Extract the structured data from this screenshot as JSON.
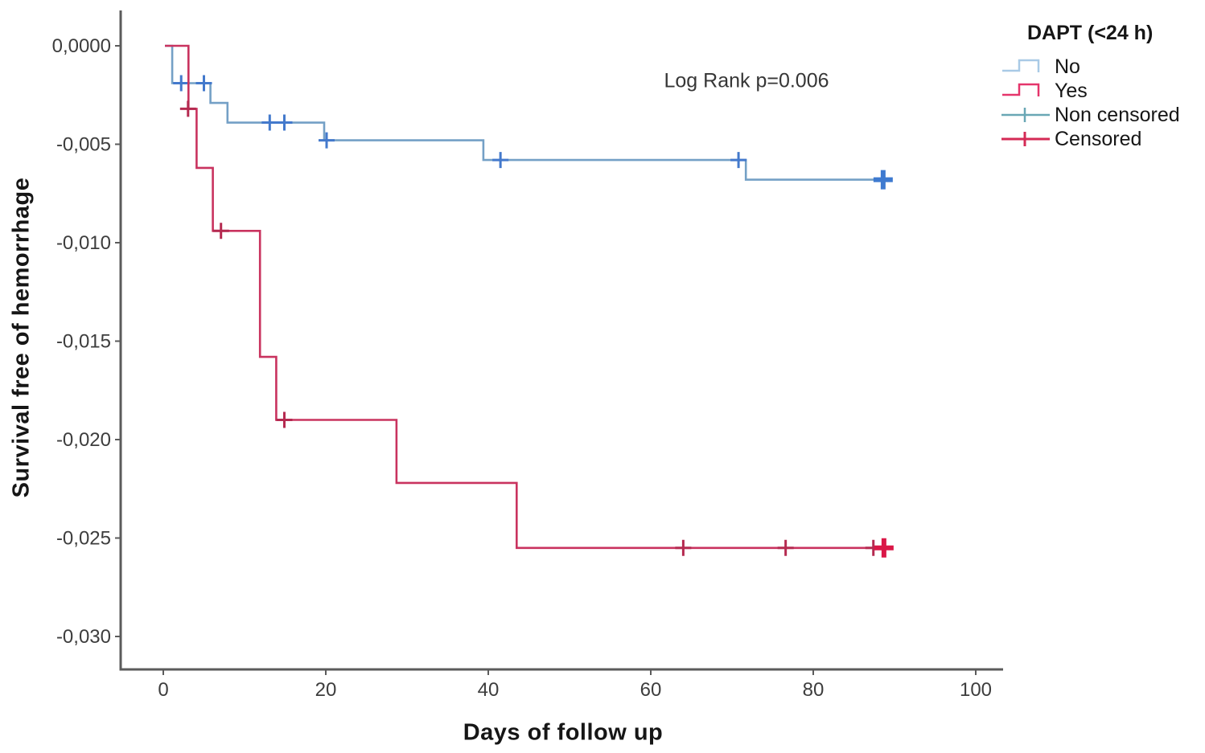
{
  "chart_data": {
    "type": "line",
    "chart_kind": "kaplan-meier-step-survival",
    "title": "",
    "xlabel": "Days of follow up",
    "ylabel": "Survival free of hemorrhage",
    "annotation": "Log Rank p=0.006",
    "grid": false,
    "xlim": [
      -5.2,
      103.4
    ],
    "ylim": [
      -0.0317,
      0.0018
    ],
    "x_ticks": {
      "values": [
        0,
        20,
        40,
        60,
        80,
        100
      ],
      "labels": [
        "0",
        "20",
        "40",
        "60",
        "80",
        "100"
      ]
    },
    "y_ticks": {
      "values": [
        0,
        -0.005,
        -0.01,
        -0.015,
        -0.02,
        -0.025,
        -0.03
      ],
      "labels": [
        "0,0000",
        "-0,005",
        "-0,010",
        "-0,015",
        "-0,020",
        "-0,025",
        "-0,030"
      ]
    },
    "axis_color": "#5b5b5b",
    "tick_label_color": "#3d3d3d",
    "legend": {
      "title": "DAPT (<24 h)",
      "position": "top-right",
      "items": [
        {
          "label": "No",
          "symbol": "step-line",
          "color": "#a9cae6"
        },
        {
          "label": "Yes",
          "symbol": "step-line",
          "color": "#e5356b"
        },
        {
          "label": "Non censored",
          "symbol": "plus-cross",
          "color": "#69a7b5"
        },
        {
          "label": "Censored",
          "symbol": "plus-cross",
          "color": "#d42a55"
        }
      ]
    },
    "series": [
      {
        "name": "No",
        "color": "#74a0c6",
        "censor_color": "#4379cc",
        "censor_bold_color": "#3e7ad0",
        "points": [
          [
            0.2,
            0
          ],
          [
            1.1,
            0
          ],
          [
            1.1,
            -0.0019
          ],
          [
            5.8,
            -0.0019
          ],
          [
            5.8,
            -0.0029
          ],
          [
            7.9,
            -0.0029
          ],
          [
            7.9,
            -0.0039
          ],
          [
            19.8,
            -0.0039
          ],
          [
            19.8,
            -0.0048
          ],
          [
            39.4,
            -0.0048
          ],
          [
            39.4,
            -0.0058
          ],
          [
            71.7,
            -0.0058
          ],
          [
            71.7,
            -0.0068
          ],
          [
            89.2,
            -0.0068
          ]
        ],
        "censors": [
          [
            2.2,
            -0.0019
          ],
          [
            5.0,
            -0.0019
          ],
          [
            13.1,
            -0.0039
          ],
          [
            14.9,
            -0.0039
          ],
          [
            20.1,
            -0.0048
          ],
          [
            41.5,
            -0.0058
          ],
          [
            70.8,
            -0.0058
          ]
        ],
        "bold_censors": [
          [
            88.6,
            -0.0068
          ]
        ]
      },
      {
        "name": "Yes",
        "color": "#c9335f",
        "censor_color": "#b52a50",
        "censor_bold_color": "#da1747",
        "points": [
          [
            0.2,
            0
          ],
          [
            3.1,
            0
          ],
          [
            3.1,
            -0.0032
          ],
          [
            4.1,
            -0.0032
          ],
          [
            4.1,
            -0.0062
          ],
          [
            6.1,
            -0.0062
          ],
          [
            6.1,
            -0.0094
          ],
          [
            11.9,
            -0.0094
          ],
          [
            11.9,
            -0.0158
          ],
          [
            13.9,
            -0.0158
          ],
          [
            13.9,
            -0.019
          ],
          [
            28.7,
            -0.019
          ],
          [
            28.7,
            -0.0222
          ],
          [
            43.5,
            -0.0222
          ],
          [
            43.5,
            -0.0255
          ],
          [
            89.3,
            -0.0255
          ]
        ],
        "censors": [
          [
            3.05,
            -0.0032
          ],
          [
            7.1,
            -0.0094
          ],
          [
            14.9,
            -0.019
          ],
          [
            64.0,
            -0.0255
          ],
          [
            76.6,
            -0.0255
          ],
          [
            87.4,
            -0.0255
          ]
        ],
        "bold_censors": [
          [
            88.7,
            -0.0255
          ]
        ]
      }
    ]
  }
}
